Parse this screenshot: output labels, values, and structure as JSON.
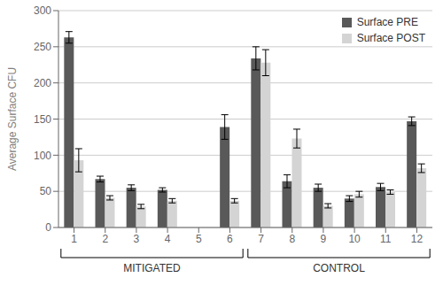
{
  "chart_data": {
    "type": "bar",
    "categories": [
      "1",
      "2",
      "3",
      "4",
      "5",
      "6",
      "7",
      "8",
      "9",
      "10",
      "11",
      "12"
    ],
    "series": [
      {
        "name": "Surface PRE",
        "color": "#595959",
        "values": [
          263,
          67,
          55,
          52,
          null,
          139,
          234,
          64,
          55,
          40,
          56,
          147
        ],
        "errors": [
          8,
          4,
          4,
          3,
          null,
          17,
          16,
          9,
          5,
          4,
          5,
          6
        ]
      },
      {
        "name": "Surface POST",
        "color": "#d4d4d4",
        "values": [
          93,
          41,
          29,
          37,
          null,
          37,
          228,
          123,
          30,
          46,
          49,
          82
        ],
        "errors": [
          16,
          3,
          3,
          3,
          null,
          3,
          18,
          13,
          3,
          4,
          3,
          6
        ]
      }
    ],
    "ylabel": "Average Surface CFU",
    "ylim": [
      0,
      300
    ],
    "yticks": [
      0,
      50,
      100,
      150,
      200,
      250,
      300
    ],
    "grid": true,
    "legend": "upper right",
    "annotations": [
      {
        "text": "MITIGATED",
        "from": "1",
        "to": "6"
      },
      {
        "text": "CONTROL",
        "from": "7",
        "to": "12"
      }
    ]
  }
}
